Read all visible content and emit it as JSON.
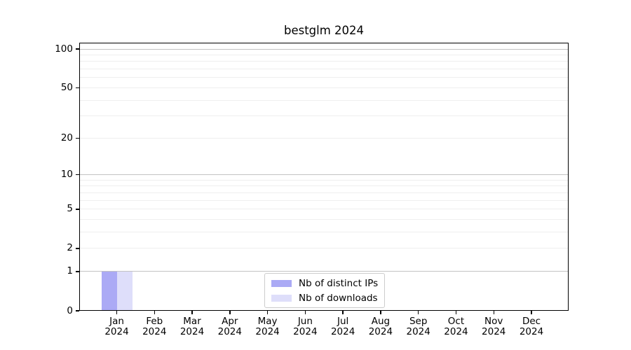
{
  "chart_data": {
    "type": "bar",
    "title": "bestglm 2024",
    "categories": [
      "Jan",
      "Feb",
      "Mar",
      "Apr",
      "May",
      "Jun",
      "Jul",
      "Aug",
      "Sep",
      "Oct",
      "Nov",
      "Dec"
    ],
    "category_year": "2024",
    "series": [
      {
        "name": "Nb of distinct IPs",
        "color": "#abaaf5",
        "values": [
          1,
          0,
          0,
          0,
          0,
          0,
          0,
          0,
          0,
          0,
          0,
          0
        ]
      },
      {
        "name": "Nb of downloads",
        "color": "#dedefa",
        "values": [
          1,
          0,
          0,
          0,
          0,
          0,
          0,
          0,
          0,
          0,
          0,
          0
        ]
      }
    ],
    "xlabel": "",
    "ylabel": "",
    "yscale": "log1p",
    "ylim": [
      0,
      112
    ],
    "y_ticks": [
      0,
      1,
      2,
      5,
      10,
      20,
      50,
      100
    ],
    "y_major_gridlines": [
      1,
      10,
      100
    ],
    "y_minor_gridlines": [
      2,
      3,
      4,
      5,
      6,
      7,
      8,
      9,
      20,
      30,
      40,
      50,
      60,
      70,
      80,
      90
    ],
    "grid": true,
    "legend_position": "lower center"
  }
}
